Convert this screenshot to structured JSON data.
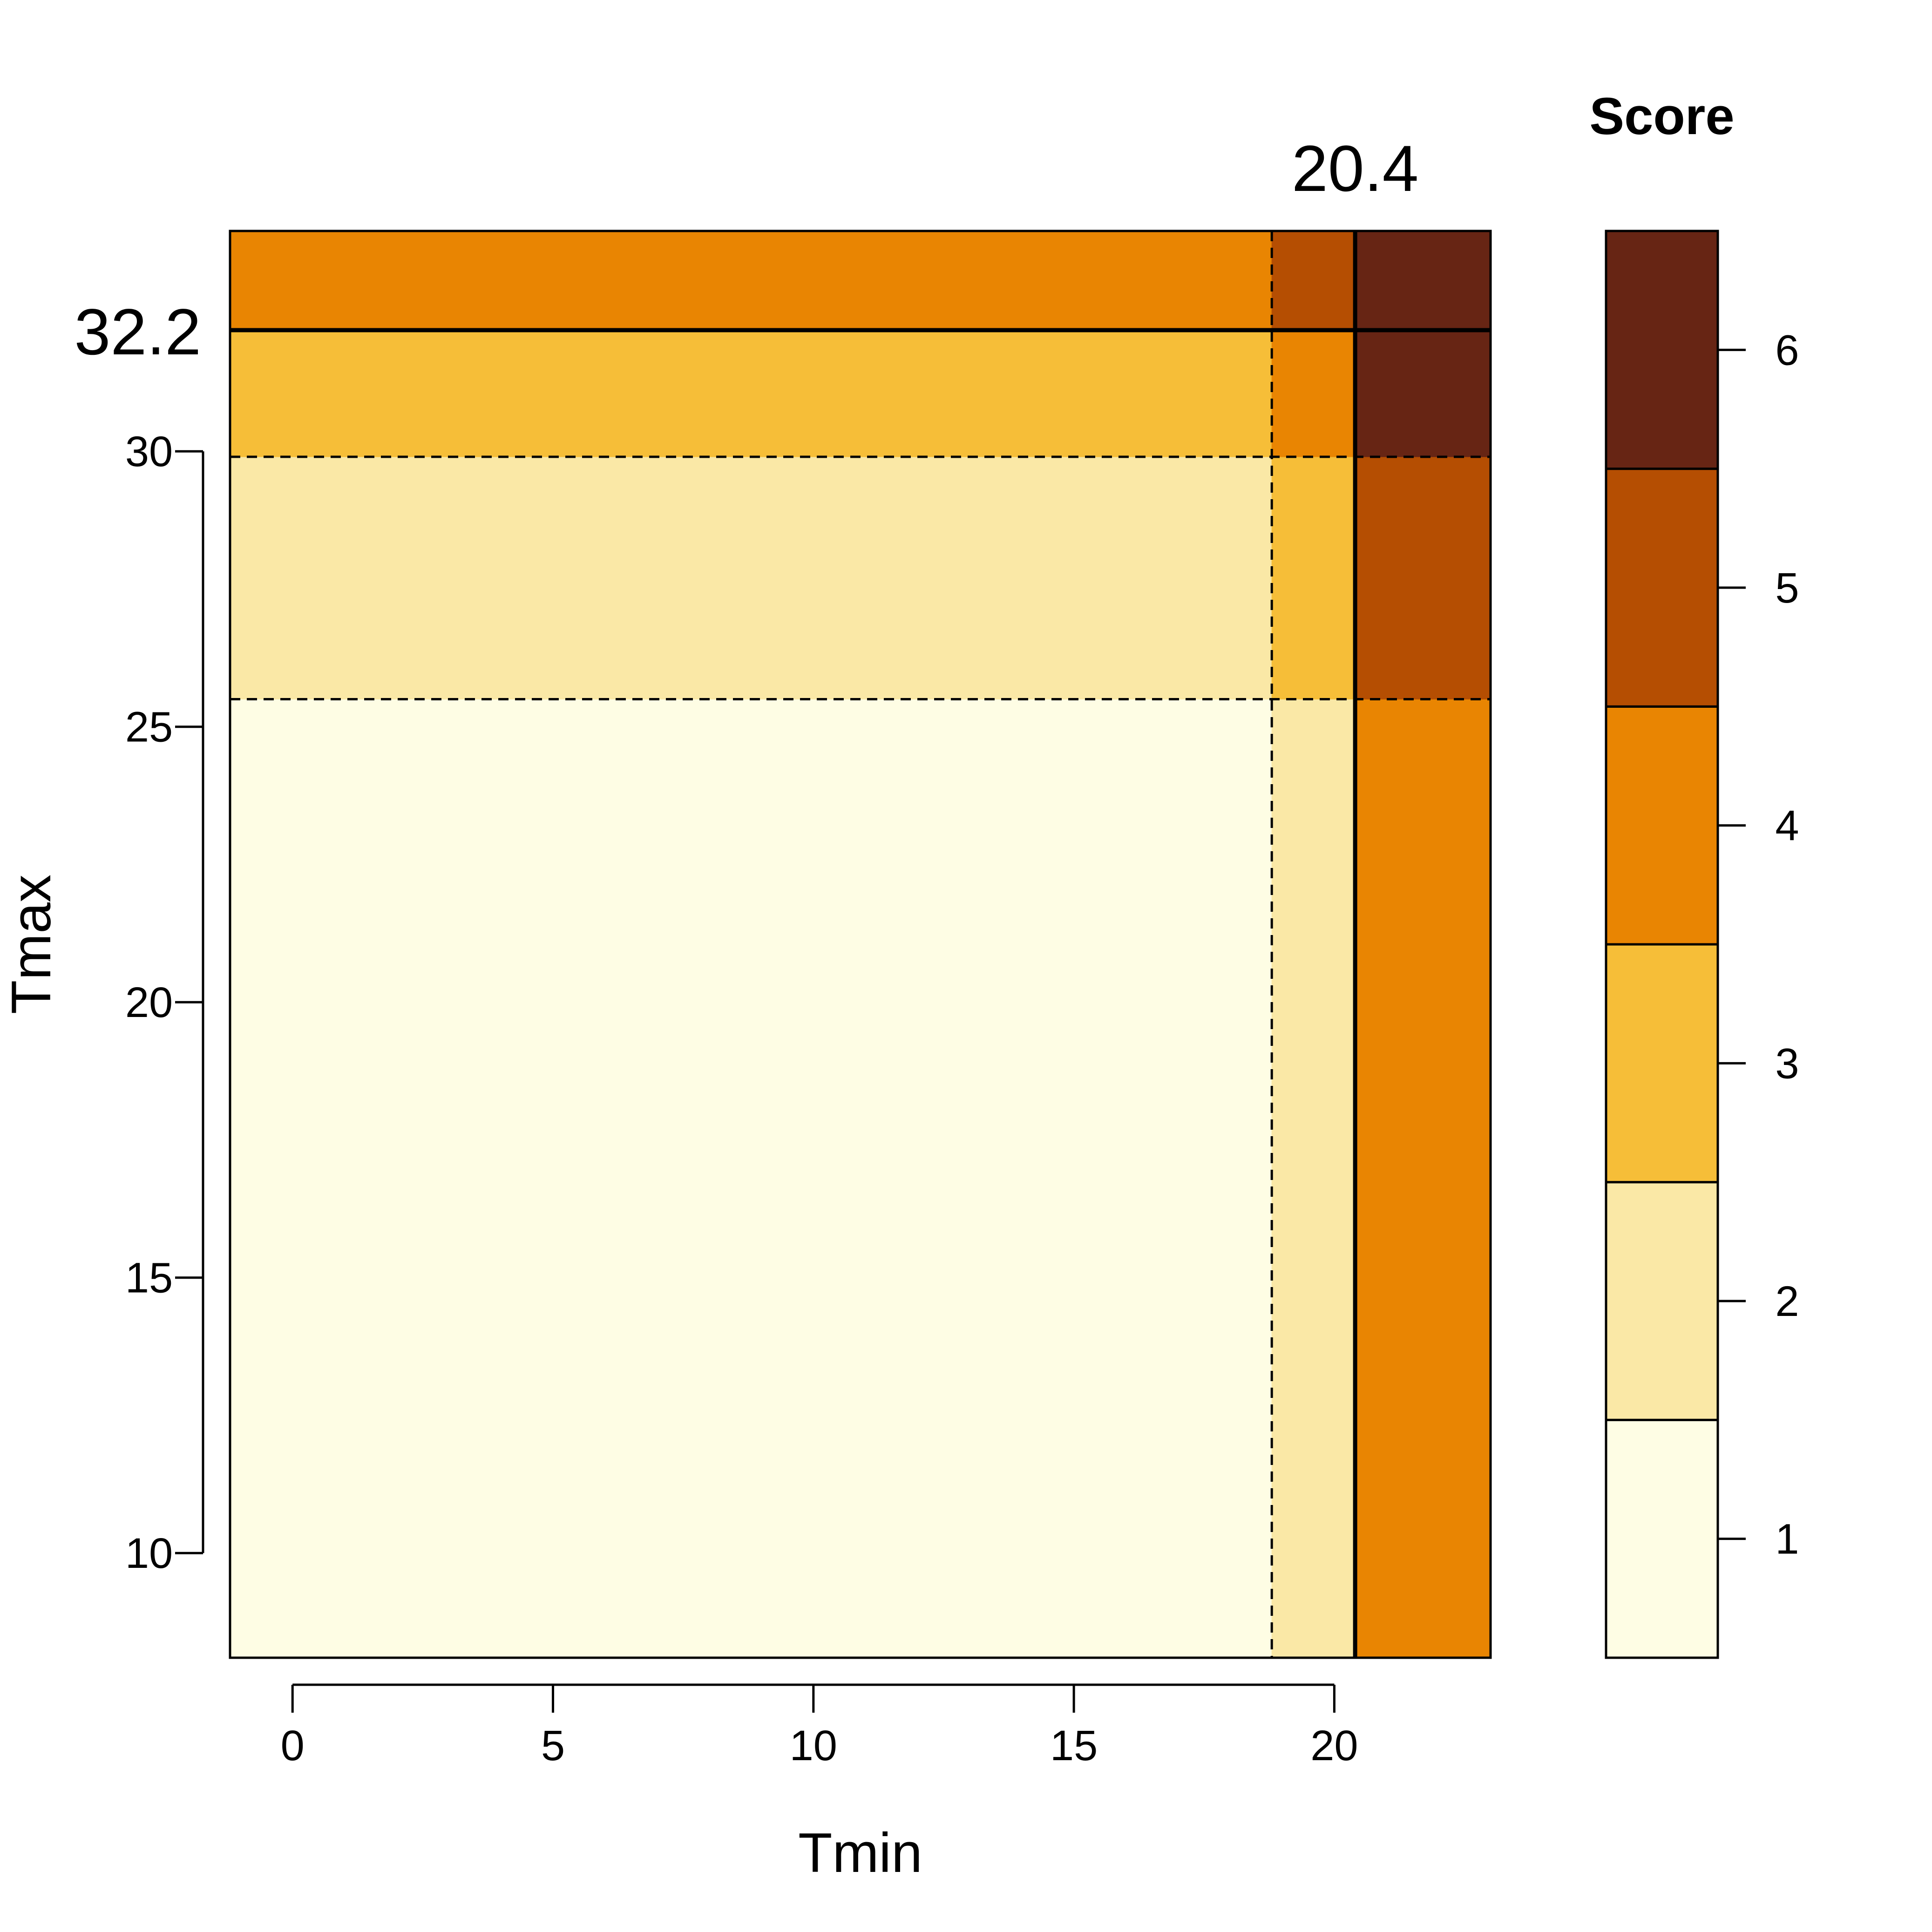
{
  "chart_data": {
    "type": "heatmap",
    "title": "",
    "xlabel": "Tmin",
    "ylabel": "Tmax",
    "xlim": [
      -1.2,
      23
    ],
    "ylim": [
      8.1,
      34
    ],
    "xticks": [
      0,
      5,
      10,
      15,
      20
    ],
    "yticks": [
      10,
      15,
      20,
      25,
      30
    ],
    "x_breaks": [
      -1.2,
      18.8,
      20.4,
      23
    ],
    "y_breaks": [
      8.1,
      25.5,
      29.9,
      32.2,
      34
    ],
    "cells": [
      {
        "tmin": [
          -1.2,
          18.8
        ],
        "tmax": [
          8.1,
          25.5
        ],
        "score": 1
      },
      {
        "tmin": [
          18.8,
          20.4
        ],
        "tmax": [
          8.1,
          25.5
        ],
        "score": 2
      },
      {
        "tmin": [
          20.4,
          23
        ],
        "tmax": [
          8.1,
          25.5
        ],
        "score": 4
      },
      {
        "tmin": [
          -1.2,
          18.8
        ],
        "tmax": [
          25.5,
          29.9
        ],
        "score": 2
      },
      {
        "tmin": [
          18.8,
          20.4
        ],
        "tmax": [
          25.5,
          29.9
        ],
        "score": 3
      },
      {
        "tmin": [
          20.4,
          23
        ],
        "tmax": [
          25.5,
          29.9
        ],
        "score": 5
      },
      {
        "tmin": [
          -1.2,
          18.8
        ],
        "tmax": [
          29.9,
          32.2
        ],
        "score": 3
      },
      {
        "tmin": [
          18.8,
          20.4
        ],
        "tmax": [
          29.9,
          32.2
        ],
        "score": 4
      },
      {
        "tmin": [
          20.4,
          23
        ],
        "tmax": [
          29.9,
          32.2
        ],
        "score": 6
      },
      {
        "tmin": [
          -1.2,
          18.8
        ],
        "tmax": [
          32.2,
          34
        ],
        "score": 4
      },
      {
        "tmin": [
          18.8,
          20.4
        ],
        "tmax": [
          32.2,
          34
        ],
        "score": 5
      },
      {
        "tmin": [
          20.4,
          23
        ],
        "tmax": [
          32.2,
          34
        ],
        "score": 6
      }
    ],
    "threshold_lines": {
      "solid": {
        "tmin": 20.4,
        "tmax": 32.2,
        "tmin_label": "20.4",
        "tmax_label": "32.2"
      },
      "dashed": {
        "tmin": [
          18.8
        ],
        "tmax": [
          25.5,
          29.9
        ]
      }
    },
    "legend": {
      "title": "Score",
      "placement": "right",
      "levels": [
        1,
        2,
        3,
        4,
        5,
        6
      ],
      "colors": [
        "#FEFDE4",
        "#FAE8A6",
        "#F6BE38",
        "#E98502",
        "#B54E02",
        "#672514"
      ]
    },
    "grid": false
  }
}
